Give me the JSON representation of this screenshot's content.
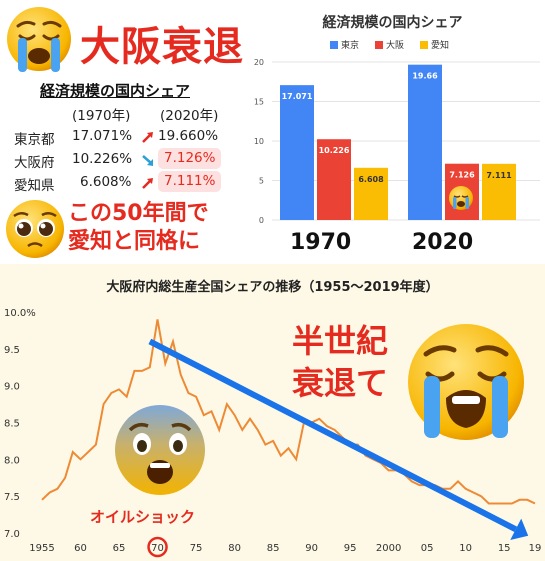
{
  "headline": "大阪衰退",
  "table": {
    "title": "経済規模の国内シェア",
    "col1": "(1970年)",
    "col2": "(2020年)",
    "rows": [
      {
        "name": "東京都",
        "v1970": "17.071%",
        "v2020": "19.660%",
        "trend": "up"
      },
      {
        "name": "大阪府",
        "v1970": "10.226%",
        "v2020": "7.126%",
        "trend": "down"
      },
      {
        "name": "愛知県",
        "v1970": "6.608%",
        "v2020": "7.111%",
        "trend": "up"
      }
    ]
  },
  "message": {
    "line1": "この50年間で",
    "line2": "愛知と同格に"
  },
  "bottom_text": {
    "line1": "半世紀",
    "line2": "衰退て",
    "oil_shock": "オイルショック"
  },
  "colors": {
    "tokyo": "#4285f4",
    "osaka": "#ea4335",
    "aichi": "#fbbc04",
    "accent_red": "#e52b1f",
    "line": "#ee8a35",
    "arrow": "#1a73e8"
  },
  "chart_data": [
    {
      "type": "bar",
      "title": "経済規模の国内シェア",
      "categories": [
        "1970",
        "2020"
      ],
      "series": [
        {
          "name": "東京",
          "values": [
            17.071,
            19.66
          ],
          "labels": [
            "17.071",
            "19.66"
          ]
        },
        {
          "name": "大阪",
          "values": [
            10.226,
            7.126
          ],
          "labels": [
            "10.226",
            "7.126"
          ]
        },
        {
          "name": "愛知",
          "values": [
            6.608,
            7.111
          ],
          "labels": [
            "6.608",
            "7.111"
          ]
        }
      ],
      "ylim": [
        0,
        20
      ],
      "yticks": [
        "0",
        "5",
        "10",
        "15",
        "20"
      ],
      "legend": "top",
      "grid": true
    },
    {
      "type": "line",
      "title": "大阪府内総生産全国シェアの推移（1955～2019年度）",
      "x": [
        1955,
        1956,
        1957,
        1958,
        1959,
        1960,
        1961,
        1962,
        1963,
        1964,
        1965,
        1966,
        1967,
        1968,
        1969,
        1970,
        1971,
        1972,
        1973,
        1974,
        1975,
        1976,
        1977,
        1978,
        1979,
        1980,
        1981,
        1982,
        1983,
        1984,
        1985,
        1986,
        1987,
        1988,
        1989,
        1990,
        1991,
        1992,
        1993,
        1994,
        1995,
        1996,
        1997,
        1998,
        1999,
        2000,
        2001,
        2002,
        2003,
        2004,
        2005,
        2006,
        2007,
        2008,
        2009,
        2010,
        2011,
        2012,
        2013,
        2014,
        2015,
        2016,
        2017,
        2018,
        2019
      ],
      "values": [
        7.45,
        7.55,
        7.6,
        7.75,
        8.1,
        8.0,
        8.1,
        8.2,
        8.75,
        8.9,
        8.95,
        8.85,
        9.2,
        9.2,
        9.25,
        9.9,
        9.3,
        9.6,
        9.15,
        8.9,
        8.85,
        8.6,
        8.65,
        8.4,
        8.75,
        8.6,
        8.4,
        8.55,
        8.4,
        8.2,
        8.25,
        8.05,
        8.15,
        8.0,
        8.5,
        8.5,
        8.55,
        8.45,
        8.4,
        8.3,
        8.2,
        8.2,
        8.05,
        8.0,
        7.95,
        7.85,
        7.85,
        7.8,
        7.7,
        7.65,
        7.65,
        7.65,
        7.6,
        7.6,
        7.7,
        7.6,
        7.55,
        7.5,
        7.4,
        7.4,
        7.4,
        7.4,
        7.45,
        7.45,
        7.4
      ],
      "yticks": [
        "10.0%",
        "9.5",
        "9.0",
        "8.5",
        "8.0",
        "7.5",
        "7.0"
      ],
      "ylim": [
        7.0,
        10.0
      ],
      "xticks": [
        "1955",
        "60",
        "65",
        "70",
        "75",
        "80",
        "85",
        "90",
        "95",
        "2000",
        "05",
        "10",
        "15",
        "19"
      ],
      "xtick_values": [
        1955,
        1960,
        1965,
        1970,
        1975,
        1980,
        1985,
        1990,
        1995,
        2000,
        2005,
        2010,
        2015,
        2019
      ],
      "highlight_x": "70"
    }
  ]
}
